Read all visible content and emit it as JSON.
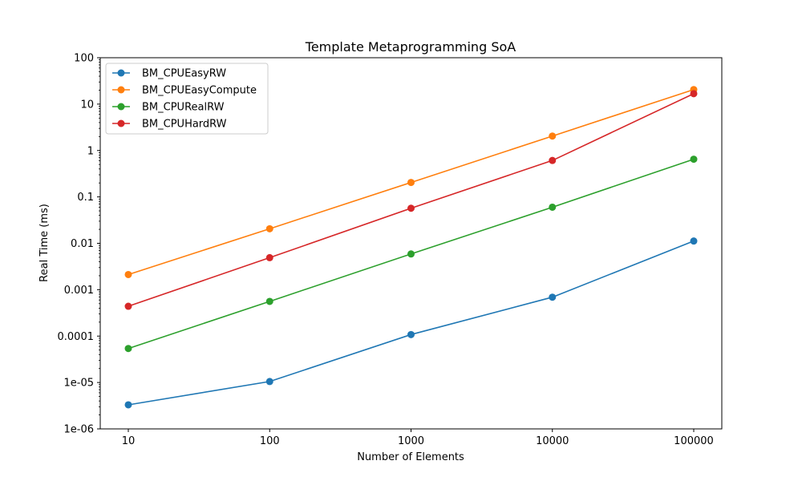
{
  "chart_data": {
    "type": "line",
    "title": "Template Metaprogramming SoA",
    "xlabel": "Number of Elements",
    "ylabel": "Real Time (ms)",
    "x_scale": "log",
    "y_scale": "log",
    "x": [
      10,
      100,
      1000,
      10000,
      100000
    ],
    "x_tick_labels": [
      "10",
      "100",
      "1000",
      "10000",
      "100000"
    ],
    "ylim": [
      1e-06,
      100
    ],
    "y_ticks": [
      1e-06,
      1e-05,
      0.0001,
      0.001,
      0.01,
      0.1,
      1,
      10,
      100
    ],
    "y_tick_labels": [
      "1e-06",
      "1e-05",
      "0.0001",
      "0.001",
      "0.01",
      "0.1",
      "1",
      "10",
      "100"
    ],
    "grid": false,
    "legend_position": "top-left",
    "marker": "circle",
    "series": [
      {
        "name": "BM_CPUEasyRW",
        "color": "#1f77b4",
        "values": [
          3.3e-06,
          1.05e-05,
          0.000108,
          0.00069,
          0.0112
        ]
      },
      {
        "name": "BM_CPUEasyCompute",
        "color": "#ff7f0e",
        "values": [
          0.00212,
          0.0206,
          0.205,
          2.05,
          20.6
        ]
      },
      {
        "name": "BM_CPURealRW",
        "color": "#2ca02c",
        "values": [
          5.4e-05,
          0.00056,
          0.0059,
          0.06,
          0.65
        ]
      },
      {
        "name": "BM_CPUHardRW",
        "color": "#d62728",
        "values": [
          0.00044,
          0.0049,
          0.057,
          0.61,
          16.8
        ]
      }
    ]
  }
}
